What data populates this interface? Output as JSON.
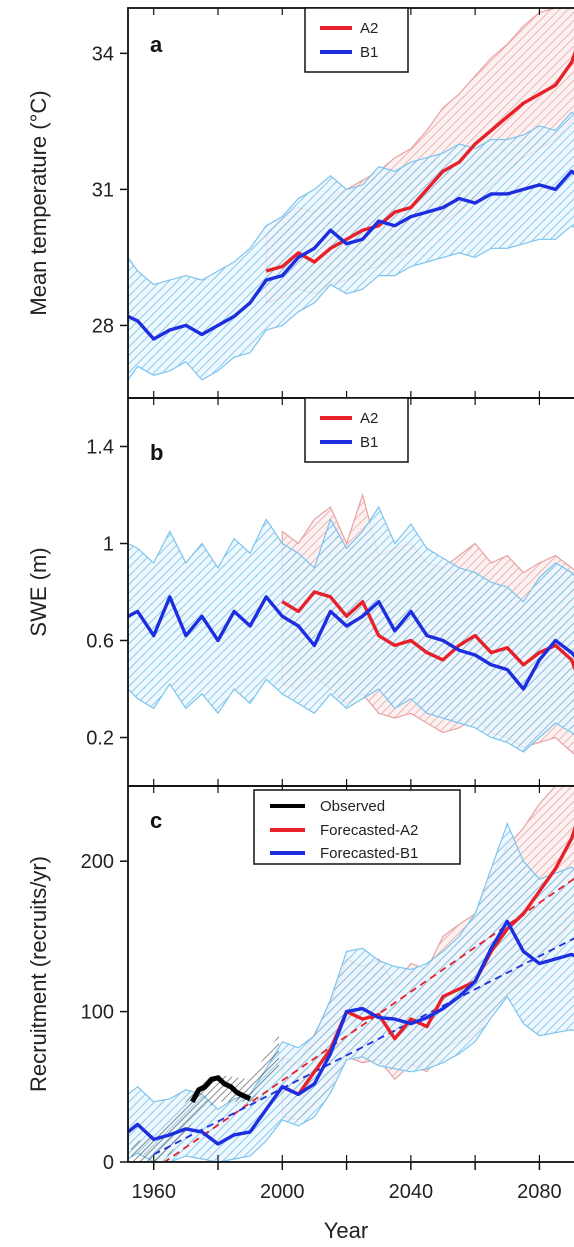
{
  "chart_data": [
    {
      "type": "line",
      "panel_label": "a",
      "ylabel": "Mean temperature (°C)",
      "xlim": [
        1952,
        2092
      ],
      "ylim": [
        26.4,
        35.0
      ],
      "yticks": [
        28,
        31,
        34
      ],
      "legend": {
        "placement": "top-center",
        "entries": [
          "A2",
          "B1"
        ]
      },
      "series": [
        {
          "name": "A2",
          "color": "#e8202a",
          "x": [
            1995,
            2000,
            2005,
            2010,
            2015,
            2020,
            2025,
            2030,
            2035,
            2040,
            2045,
            2050,
            2055,
            2060,
            2065,
            2070,
            2075,
            2080,
            2085,
            2090,
            2092
          ],
          "y": [
            29.2,
            29.3,
            29.6,
            29.4,
            29.7,
            29.9,
            30.1,
            30.2,
            30.5,
            30.6,
            31.0,
            31.4,
            31.6,
            32.0,
            32.3,
            32.6,
            32.9,
            33.1,
            33.3,
            33.8,
            34.2
          ],
          "band_lower": [
            28.5,
            28.6,
            28.8,
            28.7,
            28.9,
            29.0,
            29.2,
            29.3,
            29.5,
            29.6,
            30.0,
            30.3,
            30.5,
            30.8,
            31.1,
            31.4,
            31.7,
            31.9,
            32.1,
            32.5,
            32.8
          ],
          "band_upper": [
            30.0,
            30.4,
            30.6,
            30.5,
            30.8,
            31.0,
            31.2,
            31.4,
            31.7,
            31.9,
            32.3,
            32.8,
            33.1,
            33.5,
            33.9,
            34.2,
            34.6,
            34.9,
            35.0,
            35.0,
            35.0
          ]
        },
        {
          "name": "B1",
          "color": "#1c2ee0",
          "x": [
            1952,
            1955,
            1960,
            1965,
            1970,
            1975,
            1980,
            1985,
            1990,
            1995,
            2000,
            2005,
            2010,
            2015,
            2020,
            2025,
            2030,
            2035,
            2040,
            2045,
            2050,
            2055,
            2060,
            2065,
            2070,
            2075,
            2080,
            2085,
            2090,
            2092
          ],
          "y": [
            28.2,
            28.1,
            27.7,
            27.9,
            28.0,
            27.8,
            28.0,
            28.2,
            28.5,
            29.0,
            29.1,
            29.5,
            29.7,
            30.1,
            29.8,
            29.9,
            30.3,
            30.2,
            30.4,
            30.5,
            30.6,
            30.8,
            30.7,
            30.9,
            30.9,
            31.0,
            31.1,
            31.0,
            31.4,
            31.3
          ],
          "band_lower": [
            26.8,
            27.1,
            26.9,
            27.0,
            27.2,
            26.8,
            27.0,
            27.3,
            27.4,
            27.9,
            28.0,
            28.3,
            28.5,
            28.9,
            28.7,
            28.8,
            29.1,
            29.1,
            29.3,
            29.4,
            29.5,
            29.6,
            29.5,
            29.7,
            29.7,
            29.8,
            29.9,
            29.9,
            30.2,
            30.1
          ],
          "band_upper": [
            29.5,
            29.2,
            28.9,
            29.0,
            29.1,
            29.0,
            29.2,
            29.4,
            29.7,
            30.2,
            30.4,
            30.8,
            31.0,
            31.3,
            31.0,
            31.1,
            31.5,
            31.4,
            31.6,
            31.7,
            31.8,
            32.0,
            31.9,
            32.1,
            32.1,
            32.2,
            32.4,
            32.3,
            32.7,
            32.6
          ]
        }
      ]
    },
    {
      "type": "line",
      "panel_label": "b",
      "ylabel": "SWE (m)",
      "xlim": [
        1952,
        2092
      ],
      "ylim": [
        0.0,
        1.6
      ],
      "yticks": [
        0.2,
        0.6,
        1,
        1.4
      ],
      "ytick_labels": [
        "0.2",
        "0.6",
        "1",
        "1.4"
      ],
      "legend": {
        "placement": "top-center",
        "entries": [
          "A2",
          "B1"
        ]
      },
      "series": [
        {
          "name": "A2",
          "color": "#e8202a",
          "x": [
            2000,
            2005,
            2010,
            2015,
            2020,
            2025,
            2030,
            2035,
            2040,
            2045,
            2050,
            2055,
            2060,
            2065,
            2070,
            2075,
            2080,
            2085,
            2090,
            2092
          ],
          "y": [
            0.76,
            0.72,
            0.8,
            0.78,
            0.7,
            0.76,
            0.62,
            0.58,
            0.6,
            0.55,
            0.52,
            0.58,
            0.62,
            0.55,
            0.57,
            0.5,
            0.55,
            0.58,
            0.52,
            0.45
          ],
          "band_lower": [
            0.42,
            0.4,
            0.45,
            0.4,
            0.34,
            0.38,
            0.3,
            0.28,
            0.3,
            0.26,
            0.22,
            0.24,
            0.28,
            0.22,
            0.2,
            0.16,
            0.18,
            0.2,
            0.14,
            0.12
          ],
          "band_upper": [
            1.05,
            1.0,
            1.1,
            1.15,
            1.0,
            1.2,
            0.95,
            0.98,
            1.0,
            0.92,
            0.9,
            0.95,
            1.0,
            0.92,
            0.95,
            0.88,
            0.92,
            0.95,
            0.9,
            0.88
          ]
        },
        {
          "name": "B1",
          "color": "#1c2ee0",
          "x": [
            1952,
            1955,
            1960,
            1965,
            1970,
            1975,
            1980,
            1985,
            1990,
            1995,
            2000,
            2005,
            2010,
            2015,
            2020,
            2025,
            2030,
            2035,
            2040,
            2045,
            2050,
            2055,
            2060,
            2065,
            2070,
            2075,
            2080,
            2085,
            2090,
            2092
          ],
          "y": [
            0.7,
            0.72,
            0.62,
            0.78,
            0.62,
            0.7,
            0.6,
            0.72,
            0.66,
            0.78,
            0.7,
            0.66,
            0.58,
            0.72,
            0.66,
            0.7,
            0.76,
            0.64,
            0.72,
            0.62,
            0.6,
            0.56,
            0.54,
            0.5,
            0.48,
            0.4,
            0.52,
            0.6,
            0.55,
            0.52
          ],
          "band_lower": [
            0.4,
            0.36,
            0.32,
            0.42,
            0.32,
            0.38,
            0.3,
            0.4,
            0.34,
            0.44,
            0.38,
            0.34,
            0.3,
            0.38,
            0.32,
            0.36,
            0.4,
            0.32,
            0.36,
            0.3,
            0.28,
            0.26,
            0.24,
            0.2,
            0.18,
            0.14,
            0.2,
            0.26,
            0.22,
            0.2
          ],
          "band_upper": [
            1.0,
            0.98,
            0.92,
            1.05,
            0.92,
            1.0,
            0.9,
            1.02,
            0.96,
            1.1,
            1.0,
            0.96,
            0.9,
            1.1,
            0.98,
            1.05,
            1.15,
            1.0,
            1.08,
            0.98,
            0.94,
            0.9,
            0.88,
            0.84,
            0.82,
            0.76,
            0.86,
            0.92,
            0.88,
            0.85
          ]
        }
      ]
    },
    {
      "type": "line",
      "panel_label": "c",
      "ylabel": "Recruitment (recruits/yr)",
      "xlabel": "Year",
      "xlim": [
        1952,
        2092
      ],
      "ylim": [
        0,
        250
      ],
      "yticks": [
        0,
        100,
        200
      ],
      "xticks": [
        1960,
        2000,
        2040,
        2080
      ],
      "legend": {
        "placement": "top-center",
        "entries": [
          "Observed",
          "Forecasted-A2",
          "Forecasted-B1"
        ]
      },
      "series": [
        {
          "name": "Observed",
          "color": "#000000",
          "x": [
            1972,
            1974,
            1976,
            1978,
            1980,
            1982,
            1984,
            1986,
            1988,
            1990
          ],
          "y": [
            40,
            48,
            50,
            55,
            56,
            52,
            50,
            46,
            44,
            42
          ]
        },
        {
          "name": "Forecasted-A2",
          "color": "#e8202a",
          "x": [
            2000,
            2005,
            2010,
            2015,
            2020,
            2025,
            2030,
            2035,
            2040,
            2045,
            2050,
            2055,
            2060,
            2065,
            2070,
            2075,
            2080,
            2085,
            2090,
            2092
          ],
          "y": [
            50,
            45,
            60,
            75,
            100,
            95,
            98,
            82,
            95,
            90,
            110,
            115,
            120,
            140,
            155,
            165,
            180,
            195,
            215,
            228
          ],
          "band_lower": [
            30,
            28,
            38,
            50,
            70,
            66,
            68,
            55,
            65,
            60,
            75,
            80,
            85,
            100,
            112,
            120,
            132,
            145,
            160,
            170
          ],
          "band_upper": [
            70,
            65,
            85,
            105,
            135,
            130,
            135,
            118,
            132,
            128,
            150,
            158,
            165,
            190,
            210,
            222,
            238,
            250,
            250,
            250
          ],
          "trend": {
            "x": [
              1960,
              2092
            ],
            "y": [
              -5,
              190
            ]
          }
        },
        {
          "name": "Forecasted-B1",
          "color": "#1c2ee0",
          "x": [
            1952,
            1955,
            1960,
            1965,
            1970,
            1975,
            1980,
            1985,
            1990,
            1995,
            2000,
            2005,
            2010,
            2015,
            2020,
            2025,
            2030,
            2035,
            2040,
            2045,
            2050,
            2055,
            2060,
            2065,
            2070,
            2075,
            2080,
            2085,
            2090,
            2092
          ],
          "y": [
            20,
            25,
            15,
            18,
            22,
            20,
            12,
            18,
            20,
            35,
            50,
            45,
            52,
            72,
            100,
            102,
            96,
            95,
            92,
            96,
            102,
            110,
            120,
            142,
            160,
            140,
            132,
            135,
            138,
            136
          ],
          "band_lower": [
            2,
            6,
            0,
            0,
            4,
            2,
            0,
            2,
            4,
            14,
            28,
            24,
            30,
            46,
            68,
            70,
            64,
            62,
            60,
            62,
            66,
            72,
            80,
            96,
            110,
            92,
            84,
            86,
            88,
            86
          ],
          "band_upper": [
            45,
            50,
            40,
            42,
            48,
            45,
            35,
            42,
            45,
            62,
            80,
            76,
            84,
            108,
            140,
            142,
            134,
            130,
            128,
            132,
            140,
            150,
            165,
            195,
            225,
            200,
            188,
            192,
            196,
            192
          ],
          "trend": {
            "x": [
              1960,
              2092
            ],
            "y": [
              5,
              150
            ]
          }
        }
      ]
    }
  ]
}
